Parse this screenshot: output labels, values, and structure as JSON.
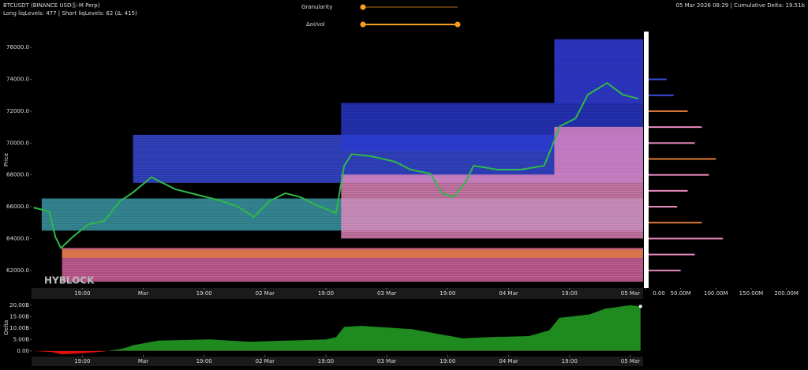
{
  "header": {
    "symbol": "BTCUSDT (BINANCE USDⓈ-M Perp)",
    "stats": "Long liqLevels: 477 | Short liqLevels: 62 (Δ: 415)",
    "right": "05 Mar 2026 08:29 | Cumulative Delta: 19.51b"
  },
  "controls": {
    "granularity": "Granularity",
    "oi_vol": "Δoi/vol"
  },
  "watermark": "HYBLOCK",
  "chart_data": [
    {
      "type": "line",
      "y_label": "Price",
      "color": "#2fb84a",
      "x": [
        -9.6,
        -6.5,
        -5.3,
        -4.2,
        -1.9,
        1.2,
        4.3,
        7.4,
        9.8,
        13.6,
        15.2,
        18.3,
        21.4,
        24.5,
        27.6,
        30.7,
        33.8,
        36.9,
        40.0,
        43.0,
        46.1,
        50.0,
        51.6,
        53.1,
        57.0,
        61.6,
        64.7,
        68.6,
        70.9,
        73.2,
        75.6,
        77.1,
        81.8,
        86.4,
        91.0,
        92.6,
        94.1,
        97.2,
        99.6,
        103.4,
        106.5,
        109.6
      ],
      "values": [
        65950,
        65700,
        64100,
        63400,
        64100,
        64900,
        65100,
        66350,
        66850,
        67850,
        67600,
        67100,
        66850,
        66600,
        66350,
        66000,
        65350,
        66350,
        66850,
        66600,
        66100,
        65600,
        68580,
        69300,
        69170,
        68830,
        68330,
        68080,
        66850,
        66600,
        67590,
        68580,
        68330,
        68330,
        68580,
        69820,
        71050,
        71550,
        73030,
        73770,
        73030,
        72780
      ],
      "bands": [
        {
          "x_start": -8,
          "low": 64500,
          "high": 66500,
          "color": "#3fa0b0"
        },
        {
          "x_start": 10,
          "low": 67500,
          "high": 70500,
          "color": "#3a4de0"
        },
        {
          "x_start": 51,
          "low": 69500,
          "high": 72500,
          "color": "#2a3ad0"
        },
        {
          "x_start": 93,
          "low": 72500,
          "high": 76500,
          "color": "#3540e8"
        },
        {
          "x_start": -4,
          "low": 61300,
          "high": 63400,
          "color": "#e06aa8"
        },
        {
          "x_start": -4,
          "low": 62800,
          "high": 63300,
          "color": "#e07b3a"
        },
        {
          "x_start": 51,
          "low": 64000,
          "high": 68000,
          "color": "#e88ac0"
        },
        {
          "x_start": 93,
          "low": 68000,
          "high": 71000,
          "color": "#e88ac0"
        }
      ],
      "xlim": [
        -10,
        110.5
      ],
      "ylim": [
        60900,
        77000
      ],
      "xticks": [
        {
          "value": 0,
          "label": "19:00"
        },
        {
          "value": 12,
          "label": "Mar"
        },
        {
          "value": 24,
          "label": "19:00"
        },
        {
          "value": 36,
          "label": "02 Mar"
        },
        {
          "value": 48,
          "label": "19:00"
        },
        {
          "value": 60,
          "label": "03 Mar"
        },
        {
          "value": 72,
          "label": "19:00"
        },
        {
          "value": 84,
          "label": "04 Mar"
        },
        {
          "value": 96,
          "label": "19:00"
        },
        {
          "value": 108,
          "label": "05 Mar"
        }
      ],
      "yticks": [
        {
          "value": 62000,
          "label": "62000.0"
        },
        {
          "value": 64000,
          "label": "64000.0"
        },
        {
          "value": 66000,
          "label": "66000.0"
        },
        {
          "value": 68000,
          "label": "68000.0"
        },
        {
          "value": 70000,
          "label": "70000.0"
        },
        {
          "value": 72000,
          "label": "72000.0"
        },
        {
          "value": 74000,
          "label": "74000.0"
        },
        {
          "value": 76000,
          "label": "76000.0"
        }
      ]
    },
    {
      "type": "hbar",
      "prices": [
        74000,
        73000,
        72000,
        71000,
        70000,
        69000,
        68000,
        67000,
        66000,
        65000,
        64000,
        63000,
        62000
      ],
      "values": [
        30000000,
        40000000,
        60000000,
        80000000,
        70000000,
        100000000,
        90000000,
        60000000,
        45000000,
        80000000,
        110000000,
        70000000,
        50000000
      ],
      "colors": [
        "#3a4de0",
        "#3a4de0",
        "#e07b3a",
        "#e88ac0",
        "#e88ac0",
        "#e07b3a",
        "#e88ac0",
        "#e88ac0",
        "#e88ac0",
        "#e07b3a",
        "#e88ac0",
        "#e88ac0",
        "#e88ac0"
      ],
      "xlim": [
        0,
        215000000
      ],
      "xticks": [
        {
          "value": 0,
          "label": "0.00"
        },
        {
          "value": 50000000,
          "label": "50.00M"
        },
        {
          "value": 100000000,
          "label": "100.00M"
        },
        {
          "value": 150000000,
          "label": "150.00M"
        },
        {
          "value": 200000000,
          "label": "200.00M"
        }
      ]
    },
    {
      "type": "area",
      "y_label": "Delta",
      "color": "#1f8a1f",
      "negative_color": "#e01010",
      "x": [
        -10,
        -6,
        -4,
        0,
        4,
        8,
        10,
        15,
        25,
        33,
        40,
        48,
        50,
        51.6,
        55,
        65,
        70,
        75,
        80,
        88,
        92,
        94,
        100,
        103,
        108,
        110
      ],
      "values": [
        0,
        -0.5,
        -1.5,
        -1.0,
        -0.3,
        1,
        2.5,
        4.5,
        5,
        4,
        4.5,
        5,
        6,
        10.5,
        11,
        9.5,
        7.5,
        5.5,
        6,
        6.5,
        9,
        14.5,
        16,
        18.5,
        20,
        19.51
      ],
      "xlim": [
        -10,
        110.5
      ],
      "ylim": [
        -1.8,
        22.4
      ],
      "xticks": [
        {
          "value": 0,
          "label": "19:00"
        },
        {
          "value": 12,
          "label": "Mar"
        },
        {
          "value": 24,
          "label": "19:00"
        },
        {
          "value": 36,
          "label": "02 Mar"
        },
        {
          "value": 48,
          "label": "19:00"
        },
        {
          "value": 60,
          "label": "03 Mar"
        },
        {
          "value": 72,
          "label": "19:00"
        },
        {
          "value": 84,
          "label": "04 Mar"
        },
        {
          "value": 96,
          "label": "19:00"
        },
        {
          "value": 108,
          "label": "05 Mar"
        }
      ],
      "yticks": [
        {
          "value": 0,
          "label": "0.00"
        },
        {
          "value": 5,
          "label": "5.00B"
        },
        {
          "value": 10,
          "label": "10.00B"
        },
        {
          "value": 15,
          "label": "15.00B"
        },
        {
          "value": 20,
          "label": "20.00B"
        }
      ]
    }
  ]
}
